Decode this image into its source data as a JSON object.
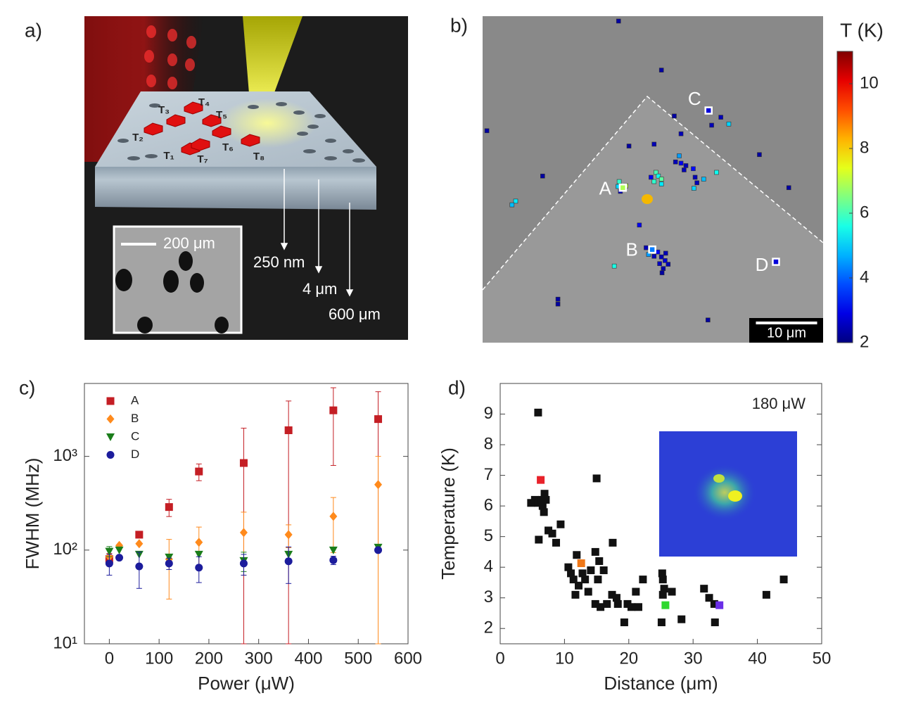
{
  "panel_labels": [
    "a)",
    "b)",
    "c)",
    "d)"
  ],
  "schematic": {
    "labels": [
      "T₁",
      "T₂",
      "T₃",
      "T₄",
      "T₅",
      "T₆",
      "T₇",
      "T₈"
    ],
    "depths": [
      "250 nm",
      "4 μm",
      "600 μm"
    ],
    "sem_scale": "200 μm"
  },
  "chart_data": [
    {
      "type": "map",
      "colorbar_title": "T (K)",
      "clim": [
        2,
        11
      ],
      "cticks": [
        2,
        4,
        6,
        8,
        10
      ],
      "colormap": "jet",
      "scale_bar": "10 μm",
      "scale_bar_length": 10,
      "xlim": [
        0,
        55.6
      ],
      "ylim": [
        0,
        53.3
      ],
      "x": [
        22.2,
        29.2,
        0.7,
        31.3,
        32.4,
        38.9,
        40.2,
        45.2,
        50.0,
        9.8,
        5.4,
        4.8,
        21.5,
        25.6,
        12.3,
        12.3,
        36.8,
        23.9,
        28.0,
        32.1,
        31.5,
        32.4,
        33.2,
        32.9,
        34.4,
        34.7,
        36.1,
        38.2,
        34.5,
        35.0,
        28.3,
        28.7,
        29.2,
        28.0,
        29.2,
        27.5,
        22.3,
        22.1,
        23.4,
        22.5,
        26.7,
        28.6,
        29.2,
        29.8,
        28.0,
        28.9,
        29.5,
        30.3,
        29.3,
        27.1,
        29.9,
        37.4
      ],
      "y": [
        52.5,
        44.5,
        34.6,
        37.0,
        34.1,
        36.8,
        35.7,
        30.7,
        25.3,
        27.2,
        23.1,
        22.5,
        12.5,
        19.2,
        7.1,
        6.3,
        3.7,
        32.1,
        32.4,
        30.5,
        29.5,
        29.3,
        28.9,
        28.2,
        28.4,
        27.0,
        26.7,
        27.8,
        25.2,
        26.1,
        27.8,
        27.2,
        26.7,
        26.3,
        25.9,
        27.0,
        26.3,
        25.5,
        25.6,
        24.7,
        15.5,
        14.8,
        14.0,
        13.4,
        14.1,
        12.9,
        12.1,
        12.8,
        11.4,
        14.4,
        14.6,
        35.5
      ],
      "values": [
        2.3,
        2.3,
        2.3,
        2.3,
        2.5,
        2.5,
        5.0,
        2.3,
        2.3,
        2.3,
        5.2,
        4.8,
        5.6,
        3.0,
        2.3,
        2.3,
        2.3,
        2.3,
        2.5,
        4.5,
        2.5,
        3.0,
        2.5,
        2.5,
        3.2,
        2.5,
        4.8,
        5.5,
        5.0,
        2.5,
        6.0,
        5.5,
        6.2,
        5.8,
        5.2,
        3.0,
        5.8,
        5.0,
        7.0,
        2.5,
        2.5,
        3.0,
        2.5,
        2.8,
        2.5,
        2.6,
        2.4,
        2.5,
        2.3,
        4.5,
        2.5,
        2.5
      ],
      "markers": [
        {
          "label": "A",
          "x": 22.9,
          "y": 25.3,
          "value": 6.9
        },
        {
          "label": "B",
          "x": 27.7,
          "y": 15.2,
          "value": 4.2
        },
        {
          "label": "C",
          "x": 36.9,
          "y": 37.9,
          "value": 2.8
        },
        {
          "label": "D",
          "x": 47.9,
          "y": 13.2,
          "value": 2.8
        }
      ]
    },
    {
      "type": "scatter",
      "xlabel": "Power (μW)",
      "ylabel": "FWHM (MHz)",
      "log_y": true,
      "legend": "upper left",
      "x": [
        0,
        20,
        60,
        120,
        180,
        270,
        360,
        450,
        540
      ],
      "xlim": [
        -50,
        600
      ],
      "xticks": [
        0,
        100,
        200,
        300,
        400,
        500,
        600
      ],
      "ylim": [
        10,
        6000
      ],
      "yticks": [
        {
          "value": 10,
          "label": "10¹"
        },
        {
          "value": 100,
          "label": "10²"
        },
        {
          "value": 1000,
          "label": "10³"
        }
      ],
      "series": [
        {
          "name": "A",
          "color": "#c41e24",
          "marker": "square",
          "values": [
            80,
            null,
            146,
            288,
            690,
            850,
            1900,
            3100,
            2500
          ],
          "errors": [
            12,
            null,
            8,
            60,
            140,
            1150,
            2000,
            2300,
            2400
          ]
        },
        {
          "name": "B",
          "color": "#ff8a1c",
          "marker": "diamond",
          "values": [
            85,
            112,
            117,
            80,
            121,
            154,
            146,
            229,
            500
          ],
          "errors": [
            null,
            null,
            null,
            50,
            55,
            100,
            40,
            135,
            500
          ]
        },
        {
          "name": "C",
          "color": "#1a7d1a",
          "marker": "triangle-down",
          "values": [
            97,
            100,
            90,
            84,
            90,
            77,
            90,
            100,
            107
          ],
          "errors": [
            12,
            null,
            null,
            null,
            null,
            18,
            null,
            null,
            null
          ]
        },
        {
          "name": "D",
          "color": "#1c1c9c",
          "marker": "circle",
          "values": [
            72,
            83,
            67,
            72,
            65,
            72,
            76,
            78,
            100
          ],
          "errors": [
            18,
            null,
            28,
            10,
            20,
            18,
            32,
            8,
            null
          ]
        }
      ]
    },
    {
      "type": "scatter",
      "xlabel": "Distance (μm)",
      "ylabel": "Temperature (K)",
      "annotation": "180 μW",
      "xlim": [
        0,
        50
      ],
      "xticks": [
        0,
        10,
        20,
        30,
        40,
        50
      ],
      "ylim": [
        1.5,
        10
      ],
      "yticks": [
        2,
        3,
        4,
        5,
        6,
        7,
        8,
        9
      ],
      "series": [
        {
          "color": "#111111",
          "marker": "square",
          "x": [
            5.9,
            4.8,
            5.4,
            5.9,
            6.5,
            6.9,
            7.1,
            6.6,
            6.8,
            6.0,
            7.5,
            8.1,
            8.7,
            9.4,
            10.6,
            11.0,
            11.4,
            11.9,
            12.2,
            11.7,
            12.8,
            13.2,
            13.7,
            14.1,
            14.8,
            15.4,
            16.1,
            15.2,
            14.8,
            15.6,
            16.6,
            17.4,
            17.5,
            18.1,
            18.3,
            19.3,
            19.8,
            20.4,
            21.1,
            21.5,
            22.2,
            15.0,
            25.2,
            25.3,
            25.5,
            25.3,
            25.1,
            26.7,
            28.2,
            31.7,
            32.5,
            33.3,
            33.4,
            41.4,
            44.1
          ],
          "values": [
            9.05,
            6.1,
            6.2,
            6.1,
            6.2,
            6.4,
            6.2,
            6.0,
            5.8,
            4.9,
            5.2,
            5.1,
            4.8,
            5.4,
            4.0,
            3.8,
            3.6,
            4.4,
            3.4,
            3.1,
            3.8,
            3.6,
            3.2,
            3.9,
            4.5,
            4.2,
            3.9,
            3.6,
            2.8,
            2.7,
            2.8,
            3.1,
            4.8,
            3.0,
            2.8,
            2.2,
            2.8,
            2.7,
            3.2,
            2.7,
            3.6,
            6.9,
            3.8,
            3.6,
            3.3,
            3.1,
            2.2,
            3.2,
            2.3,
            3.3,
            3.0,
            2.8,
            2.2,
            3.1,
            3.6
          ]
        },
        {
          "color": "#e8222a",
          "marker": "square",
          "x": [
            6.3
          ],
          "values": [
            6.85
          ]
        },
        {
          "color": "#f07818",
          "marker": "square",
          "x": [
            12.6
          ],
          "values": [
            4.13
          ]
        },
        {
          "color": "#2ed82e",
          "marker": "square",
          "x": [
            25.7
          ],
          "values": [
            2.76
          ]
        },
        {
          "color": "#6a2ee8",
          "marker": "square",
          "x": [
            34.1
          ],
          "values": [
            2.76
          ]
        }
      ]
    }
  ]
}
